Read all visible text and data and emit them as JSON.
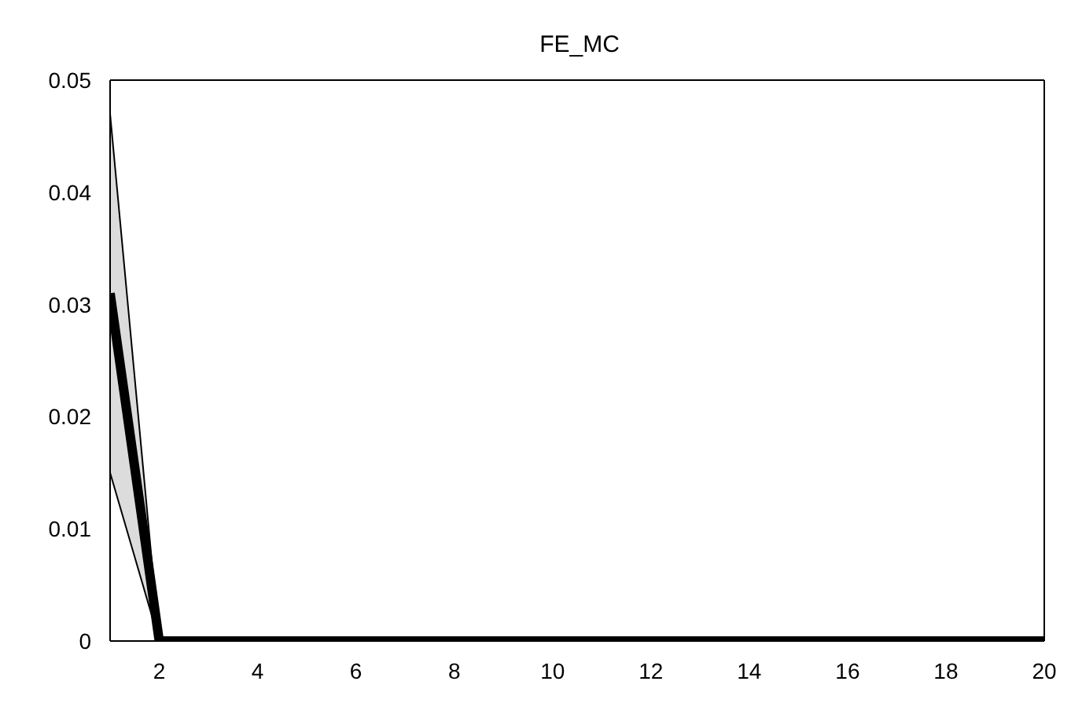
{
  "chart_data": {
    "type": "line",
    "title": "FE_MC",
    "x": [
      1,
      2,
      3,
      4,
      5,
      6,
      7,
      8,
      9,
      10,
      11,
      12,
      13,
      14,
      15,
      16,
      17,
      18,
      19,
      20
    ],
    "series": [
      {
        "color": "#000000",
        "values": [
          0.031,
          0,
          0,
          0,
          0,
          0,
          0,
          0,
          0,
          0,
          0,
          0,
          0,
          0,
          0,
          0,
          0,
          0,
          0,
          0
        ],
        "lower": [
          0.015,
          0,
          0,
          0,
          0,
          0,
          0,
          0,
          0,
          0,
          0,
          0,
          0,
          0,
          0,
          0,
          0,
          0,
          0,
          0
        ],
        "upper": [
          0.047,
          0,
          0,
          0,
          0,
          0,
          0,
          0,
          0,
          0,
          0,
          0,
          0,
          0,
          0,
          0,
          0,
          0,
          0,
          0
        ]
      },
      {
        "color": "#000000",
        "values": [
          0.047,
          0,
          0,
          0,
          0,
          0,
          0,
          0,
          0,
          0,
          0,
          0,
          0,
          0,
          0,
          0,
          0,
          0,
          0,
          0
        ]
      },
      {
        "color": "#000000",
        "values": [
          0.015,
          0,
          0,
          0,
          0,
          0,
          0,
          0,
          0,
          0,
          0,
          0,
          0,
          0,
          0,
          0,
          0,
          0,
          0,
          0
        ]
      }
    ],
    "xlim": [
      1,
      20
    ],
    "xticks": [
      2,
      4,
      6,
      8,
      10,
      12,
      14,
      16,
      18,
      20
    ],
    "ylim": [
      0,
      0.05
    ],
    "yticks": [
      0,
      0.01,
      0.02,
      0.03,
      0.04,
      0.05
    ],
    "grid": false,
    "legend": false,
    "marker": "none",
    "line_style": "solid"
  }
}
